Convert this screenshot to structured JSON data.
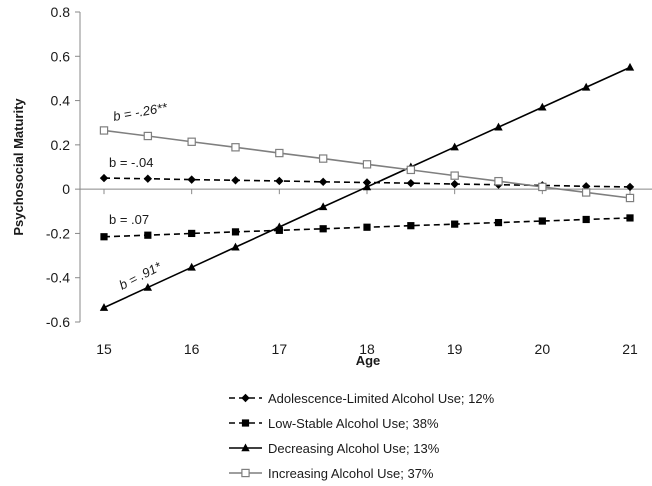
{
  "chart_data": {
    "type": "line",
    "title": "",
    "xlabel": "Age",
    "ylabel": "Psychosocial Maturity",
    "xlim": [
      15,
      21
    ],
    "ylim": [
      -0.6,
      0.8
    ],
    "x_ticks": [
      "15",
      "16",
      "17",
      "18",
      "19",
      "20",
      "21"
    ],
    "y_ticks": [
      "-0.6",
      "-0.4",
      "-0.2",
      "0",
      "0.2",
      "0.4",
      "0.6",
      "0.8"
    ],
    "grid": false,
    "legend_placement": "bottom",
    "x": [
      15,
      15.5,
      16,
      16.5,
      17,
      17.5,
      18,
      18.5,
      19,
      19.5,
      20,
      20.5,
      21
    ],
    "series": [
      {
        "name": "Adolescence-Limited Alcohol Use; 12%",
        "marker": "diamond",
        "line_style": "dashed",
        "color": "#000000",
        "values": [
          0.05,
          0.047,
          0.043,
          0.04,
          0.037,
          0.033,
          0.03,
          0.027,
          0.023,
          0.02,
          0.017,
          0.013,
          0.01
        ]
      },
      {
        "name": "Low-Stable Alcohol Use; 38%",
        "marker": "square-filled",
        "line_style": "dashed",
        "color": "#000000",
        "values": [
          -0.215,
          -0.208,
          -0.2,
          -0.193,
          -0.186,
          -0.179,
          -0.172,
          -0.165,
          -0.158,
          -0.151,
          -0.144,
          -0.137,
          -0.13
        ]
      },
      {
        "name": "Decreasing Alcohol Use; 13%",
        "marker": "triangle",
        "line_style": "solid",
        "color": "#000000",
        "values": [
          -0.535,
          -0.444,
          -0.353,
          -0.262,
          -0.171,
          -0.08,
          0.01,
          0.1,
          0.19,
          0.28,
          0.37,
          0.46,
          0.55
        ]
      },
      {
        "name": "Increasing Alcohol Use; 37%",
        "marker": "square-open",
        "line_style": "solid",
        "color": "#7f7f7f",
        "values": [
          0.265,
          0.24,
          0.214,
          0.189,
          0.163,
          0.138,
          0.112,
          0.087,
          0.061,
          0.036,
          0.01,
          -0.015,
          -0.04
        ]
      }
    ],
    "annotations": [
      {
        "text": "b = -.26**",
        "series": "Increasing Alcohol Use; 37%"
      },
      {
        "text": "b = -.04",
        "series": "Adolescence-Limited Alcohol Use; 12%"
      },
      {
        "text": "b = .07",
        "series": "Low-Stable Alcohol Use; 38%"
      },
      {
        "text": "b = .91*",
        "series": "Decreasing Alcohol Use; 13%"
      }
    ]
  }
}
